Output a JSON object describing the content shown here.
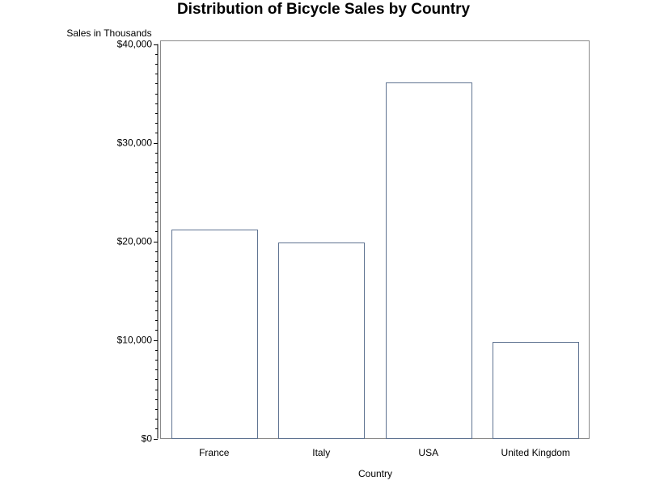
{
  "chart_data": {
    "type": "bar",
    "title": "Distribution of Bicycle Sales by Country",
    "xlabel": "Country",
    "ylabel": "Sales in Thousands",
    "categories": [
      "France",
      "Italy",
      "USA",
      "United Kingdom"
    ],
    "values": [
      21200,
      19900,
      36100,
      9800
    ],
    "ylim": [
      0,
      40000
    ],
    "y_ticks": [
      0,
      10000,
      20000,
      30000,
      40000
    ],
    "y_tick_labels": [
      "$0",
      "$10,000",
      "$20,000",
      "$30,000",
      "$40,000"
    ],
    "grid": false,
    "legend": "none",
    "colors": {
      "bar_outline": "#5f7391",
      "bar_fill": "#ffffff",
      "frame": "#8a8a8a"
    }
  }
}
